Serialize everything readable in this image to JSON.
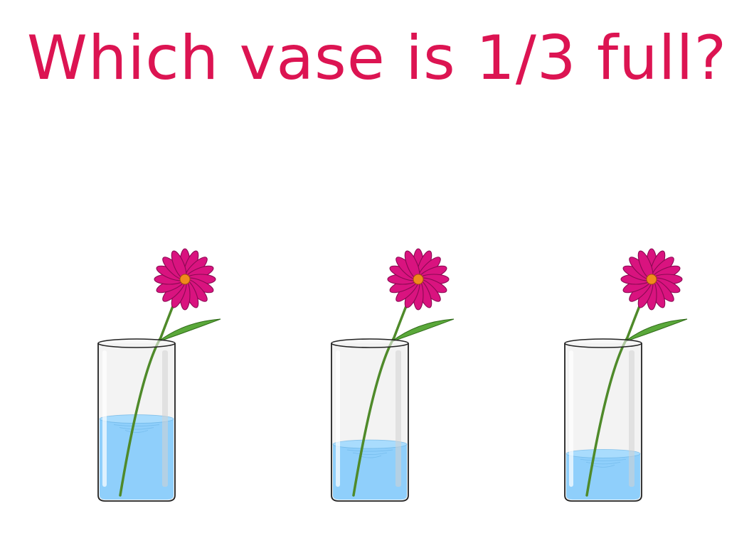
{
  "question": {
    "text": "Which vase is 1/3 full?",
    "color": "#dc1452"
  },
  "vases": [
    {
      "id": "vase-1",
      "fill_fraction": 0.52
    },
    {
      "id": "vase-2",
      "fill_fraction": 0.36
    },
    {
      "id": "vase-3",
      "fill_fraction": 0.3
    }
  ],
  "colors": {
    "water": "#8fcffb",
    "water_edge": "#5aa9dd",
    "glass_outline": "#222222",
    "glass_tint": "#e9e9e9",
    "petal": "#d9137f",
    "petal_dark": "#8a0a52",
    "flower_center": "#f08a1c",
    "stem": "#4f8a2a",
    "leaf": "#5aa83a"
  }
}
